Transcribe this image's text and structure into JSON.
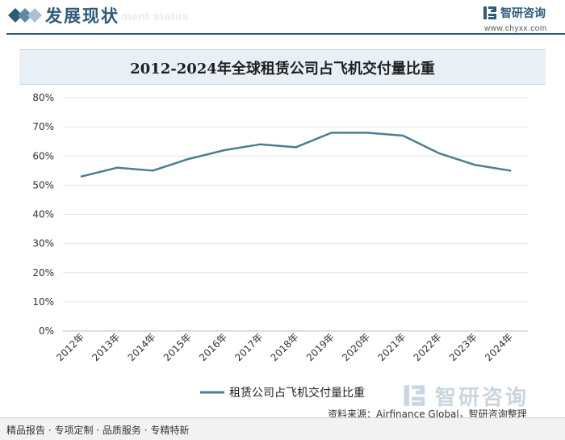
{
  "header": {
    "title": "发展现状",
    "subtitle": "ment status"
  },
  "brand": {
    "name": "智研咨询",
    "url": "www.chyxx.com"
  },
  "chart_data": {
    "type": "line",
    "title": "2012-2024年全球租赁公司占飞机交付量比重",
    "categories": [
      "2012年",
      "2013年",
      "2014年",
      "2015年",
      "2016年",
      "2017年",
      "2018年",
      "2019年",
      "2020年",
      "2021年",
      "2022年",
      "2023年",
      "2024年"
    ],
    "series": [
      {
        "name": "租赁公司占飞机交付量比重",
        "color": "#4d7d91",
        "values": [
          53,
          56,
          55,
          59,
          62,
          64,
          63,
          68,
          68,
          67,
          61,
          57,
          55
        ]
      }
    ],
    "ylim": [
      0,
      80
    ],
    "yticks": [
      "0%",
      "10%",
      "20%",
      "30%",
      "40%",
      "50%",
      "60%",
      "70%",
      "80%"
    ],
    "grid": true,
    "legend_position": "bottom-center"
  },
  "footer": {
    "left": "精品报告 · 专项定制 · 品质服务 · 专精特新",
    "source": "资料来源：Airfinance Global，智研咨询整理"
  },
  "watermark": {
    "name": "智研咨询"
  }
}
